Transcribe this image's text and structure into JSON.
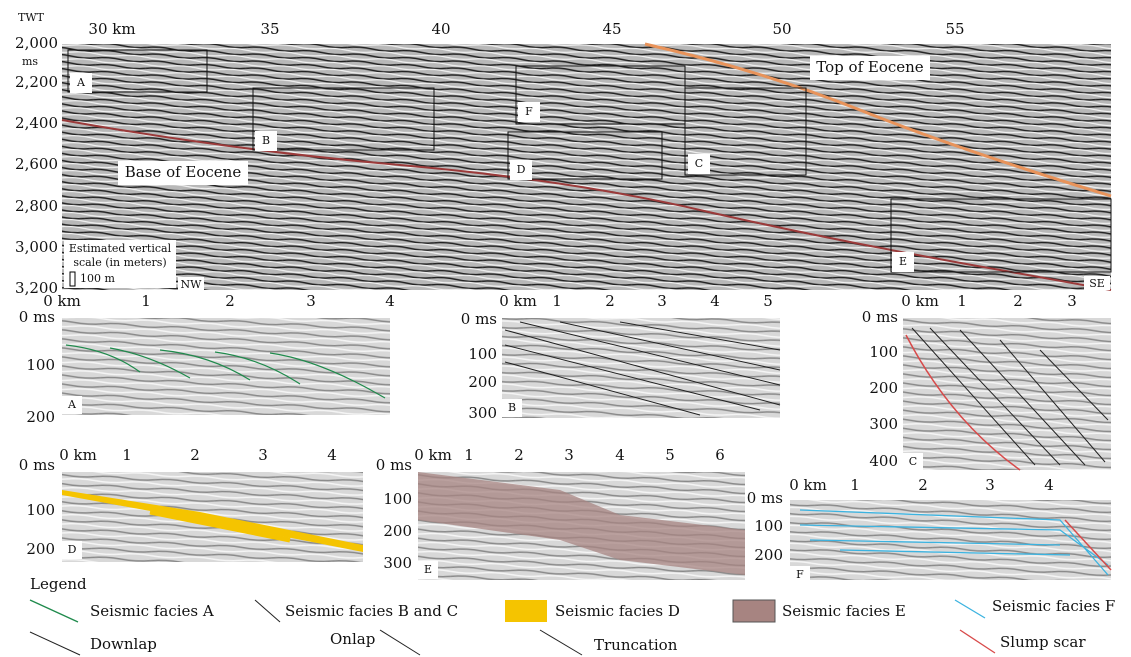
{
  "section": {
    "axis_title": "TWT",
    "unit": "ms",
    "y_ticks": [
      "2,000",
      "2,200",
      "2,400",
      "2,600",
      "2,800",
      "3,000",
      "3,200"
    ],
    "x_ticks": [
      "30 km",
      "35",
      "40",
      "45",
      "50",
      "55"
    ],
    "boxes": [
      "A",
      "B",
      "F",
      "D",
      "C",
      "E"
    ],
    "horizons": [
      "Top of Eocene",
      "Base of Eocene"
    ],
    "scale": [
      "Estimated vertical",
      "scale (in meters)",
      "100 m"
    ],
    "directions": [
      "NW",
      "SE"
    ]
  },
  "panels": [
    {
      "label": "A",
      "x_ticks": [
        "0 km",
        "1",
        "2",
        "3",
        "4"
      ],
      "y_ticks": [
        "0 ms",
        "100",
        "200"
      ]
    },
    {
      "label": "B",
      "x_ticks": [
        "0 km",
        "1",
        "2",
        "3",
        "4",
        "5"
      ],
      "y_ticks": [
        "0 ms",
        "100",
        "200",
        "300"
      ]
    },
    {
      "label": "C",
      "x_ticks": [
        "0 km",
        "1",
        "2",
        "3"
      ],
      "y_ticks": [
        "0 ms",
        "100",
        "200",
        "300",
        "400"
      ]
    },
    {
      "label": "D",
      "x_ticks": [
        "0 km",
        "1",
        "2",
        "3",
        "4"
      ],
      "y_ticks": [
        "0 ms",
        "100",
        "200"
      ]
    },
    {
      "label": "E",
      "x_ticks": [
        "0 km",
        "1",
        "2",
        "3",
        "4",
        "5",
        "6"
      ],
      "y_ticks": [
        "0 ms",
        "100",
        "200",
        "300"
      ]
    },
    {
      "label": "F",
      "x_ticks": [
        "0 km",
        "1",
        "2",
        "3",
        "4"
      ],
      "y_ticks": [
        "0 ms",
        "100",
        "200"
      ]
    }
  ],
  "legend": {
    "title": "Legend",
    "items": [
      "Seismic facies A",
      "Seismic facies B and C",
      "Seismic facies D",
      "Seismic facies E",
      "Seismic facies F",
      "Downlap",
      "Onlap",
      "Truncation",
      "Slump scar"
    ]
  }
}
